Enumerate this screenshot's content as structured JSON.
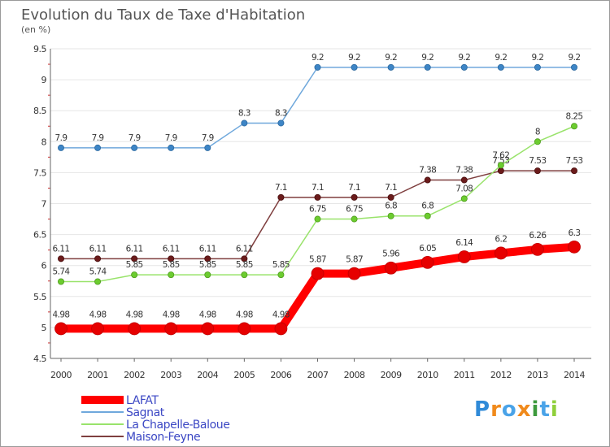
{
  "chart_data": {
    "type": "line",
    "title": "Evolution du Taux de Taxe d'Habitation",
    "subtitle": "(en %)",
    "ylim": [
      4.5,
      9.5
    ],
    "yticks": [
      "4.5",
      "5",
      "5.5",
      "6",
      "6.5",
      "7",
      "7.5",
      "8",
      "8.5",
      "9",
      "9.5"
    ],
    "x": [
      2000,
      2001,
      2002,
      2003,
      2004,
      2005,
      2006,
      2007,
      2008,
      2009,
      2010,
      2011,
      2012,
      2013,
      2014
    ],
    "grid": "horizontal",
    "legend_position": "bottom-left",
    "series": [
      {
        "name": "Sagnat",
        "color": "#6fa8dc",
        "marker_color": "#3d85c6",
        "values": [
          7.9,
          7.9,
          7.9,
          7.9,
          7.9,
          8.3,
          8.3,
          9.2,
          9.2,
          9.2,
          9.2,
          9.2,
          9.2,
          9.2,
          9.2
        ],
        "labels": [
          "7.9",
          "7.9",
          "7.9",
          "7.9",
          "7.9",
          "8.3",
          "8.3",
          "9.2",
          "9.2",
          "9.2",
          "9.2",
          "9.2",
          "9.2",
          "9.2",
          "9.2"
        ]
      },
      {
        "name": "Maison-Feyne",
        "color": "#7f3f3f",
        "marker_color": "#6b1b1b",
        "values": [
          6.11,
          6.11,
          6.11,
          6.11,
          6.11,
          6.11,
          7.1,
          7.1,
          7.1,
          7.1,
          7.38,
          7.38,
          7.53,
          7.53,
          7.53
        ],
        "labels": [
          "6.11",
          "6.11",
          "6.11",
          "6.11",
          "6.11",
          "6.11",
          "7.1",
          "7.1",
          "7.1",
          "7.1",
          "7.38",
          "7.38",
          "7.53",
          "7.53",
          "7.53"
        ]
      },
      {
        "name": "La Chapelle-Baloue",
        "color": "#99e36b",
        "marker_color": "#6ccc2f",
        "values": [
          5.74,
          5.74,
          5.85,
          5.85,
          5.85,
          5.85,
          5.85,
          6.75,
          6.75,
          6.8,
          6.8,
          7.08,
          7.62,
          8.0,
          8.25
        ],
        "labels": [
          "5.74",
          "5.74",
          "5.85",
          "5.85",
          "5.85",
          "5.85",
          "5.85",
          "6.75",
          "6.75",
          "6.8",
          "6.8",
          "7.08",
          "7.62",
          "8",
          "8.25"
        ]
      },
      {
        "name": "LAFAT",
        "color": "#ff0000",
        "marker_color": "#e60000",
        "values": [
          4.98,
          4.98,
          4.98,
          4.98,
          4.98,
          4.98,
          4.98,
          5.87,
          5.87,
          5.96,
          6.05,
          6.14,
          6.2,
          6.26,
          6.3
        ],
        "labels": [
          "4.98",
          "4.98",
          "4.98",
          "4.98",
          "4.98",
          "4.98",
          "4.98",
          "5.87",
          "5.87",
          "5.96",
          "6.05",
          "6.14",
          "6.2",
          "6.26",
          "6.3"
        ]
      }
    ],
    "legend_order": [
      "LAFAT",
      "Sagnat",
      "La Chapelle-Baloue",
      "Maison-Feyne"
    ]
  },
  "brand": {
    "letters": [
      "P",
      "r",
      "o",
      "x",
      "i",
      "t",
      "i"
    ],
    "colors": [
      "#2f8ad8",
      "#f08a1c",
      "#4aa3e8",
      "#f08a1c",
      "#3d9a3d",
      "#4aa3e8",
      "#8fcf3a"
    ]
  }
}
